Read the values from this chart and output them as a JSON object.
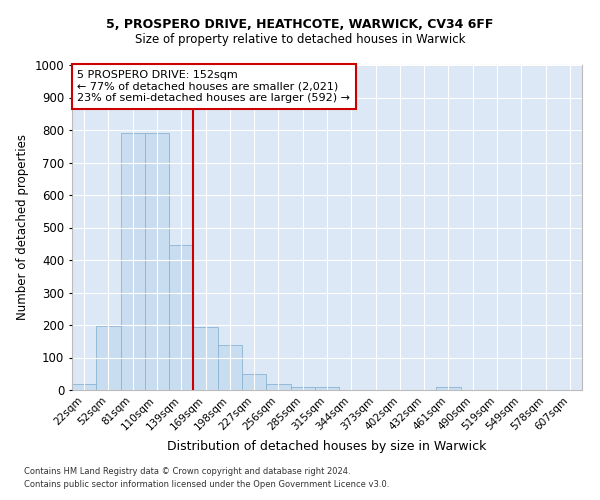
{
  "title1": "5, PROSPERO DRIVE, HEATHCOTE, WARWICK, CV34 6FF",
  "title2": "Size of property relative to detached houses in Warwick",
  "xlabel": "Distribution of detached houses by size in Warwick",
  "ylabel": "Number of detached properties",
  "bar_labels": [
    "22sqm",
    "52sqm",
    "81sqm",
    "110sqm",
    "139sqm",
    "169sqm",
    "198sqm",
    "227sqm",
    "256sqm",
    "285sqm",
    "315sqm",
    "344sqm",
    "373sqm",
    "402sqm",
    "432sqm",
    "461sqm",
    "490sqm",
    "519sqm",
    "549sqm",
    "578sqm",
    "607sqm"
  ],
  "bar_values": [
    18,
    197,
    790,
    790,
    445,
    195,
    140,
    48,
    18,
    10,
    10,
    0,
    0,
    0,
    0,
    10,
    0,
    0,
    0,
    0,
    0
  ],
  "bar_color": "#c9ddf0",
  "bar_edge_color": "#8ab4d4",
  "vline_color": "#cc0000",
  "annotation_title": "5 PROSPERO DRIVE: 152sqm",
  "annotation_line1": "← 77% of detached houses are smaller (2,021)",
  "annotation_line2": "23% of semi-detached houses are larger (592) →",
  "annotation_box_facecolor": "#ffffff",
  "annotation_box_edgecolor": "#cc0000",
  "ylim": [
    0,
    1000
  ],
  "yticks": [
    0,
    100,
    200,
    300,
    400,
    500,
    600,
    700,
    800,
    900,
    1000
  ],
  "plot_bg_color": "#dce8f5",
  "fig_bg_color": "#ffffff",
  "footnote1": "Contains HM Land Registry data © Crown copyright and database right 2024.",
  "footnote2": "Contains public sector information licensed under the Open Government Licence v3.0."
}
